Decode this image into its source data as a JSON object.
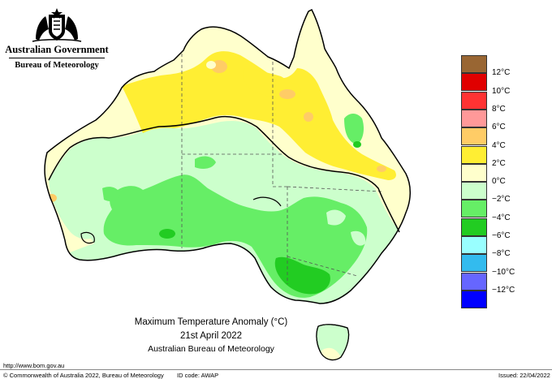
{
  "header": {
    "government": "Australian Government",
    "bureau": "Bureau of Meteorology"
  },
  "map": {
    "title": "Maximum Temperature Anomaly (°C)",
    "date": "21st April 2022",
    "source": "Australian Bureau of Meteorology"
  },
  "legend": {
    "labels": [
      "12°C",
      "10°C",
      "8°C",
      "6°C",
      "4°C",
      "2°C",
      "0°C",
      "−2°C",
      "−4°C",
      "−6°C",
      "−8°C",
      "−10°C",
      "−12°C"
    ],
    "colors": [
      "#996633",
      "#e00000",
      "#ff3333",
      "#ff9999",
      "#ffcc66",
      "#ffee33",
      "#ffffcc",
      "#ccffcc",
      "#66ee66",
      "#22cc22",
      "#99ffff",
      "#33bbee",
      "#6666ff",
      "#0000ff"
    ]
  },
  "footer": {
    "url": "http://www.bom.gov.au",
    "copyright": "© Commonwealth of Australia 2022, Bureau of Meteorology",
    "id_code": "ID code: AWAP",
    "issued": "Issued: 22/04/2022"
  }
}
